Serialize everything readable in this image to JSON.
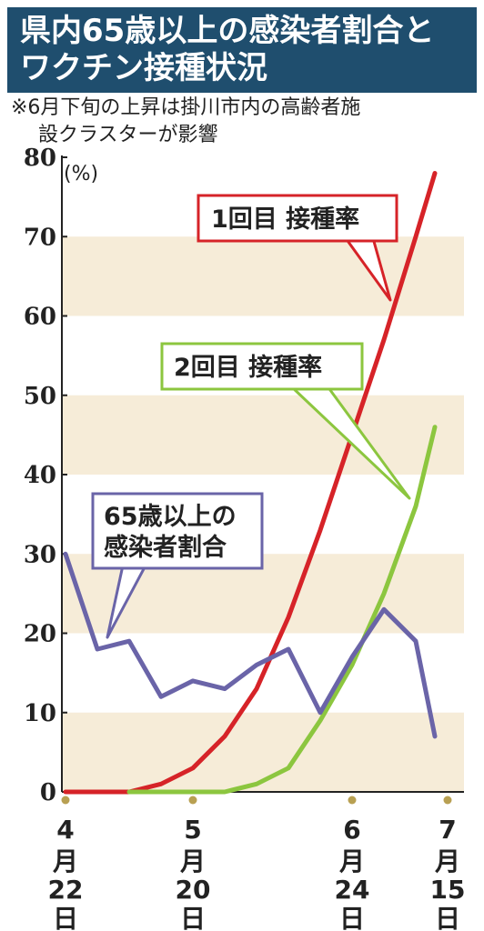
{
  "title": {
    "line1": "県内65歳以上の感染者割合と",
    "line2": "ワクチン接種状況"
  },
  "note": {
    "line1": "※6月下旬の上昇は掛川市内の高齢者施",
    "line2": "設クラスターが影響"
  },
  "colors": {
    "title_bg": "#1f4e6e",
    "band": "#f6ecd8",
    "dose1": "#d62328",
    "dose2": "#8cc63f",
    "infection": "#6a64a8",
    "date_dot": "#b8a052"
  },
  "chart_data": {
    "type": "line",
    "unit": "(%)",
    "ylim": [
      0,
      80
    ],
    "yticks": [
      "0",
      "10",
      "20",
      "30",
      "40",
      "50",
      "60",
      "70",
      "80"
    ],
    "x_index_range": [
      0,
      12
    ],
    "xticks": [
      {
        "index": 0,
        "month": "4",
        "tsuki": "月",
        "day": "22",
        "nichi": "日"
      },
      {
        "index": 4,
        "month": "5",
        "tsuki": "月",
        "day": "20",
        "nichi": "日"
      },
      {
        "index": 9,
        "month": "6",
        "tsuki": "月",
        "day": "24",
        "nichi": "日"
      },
      {
        "index": 12,
        "month": "7",
        "tsuki": "月",
        "day": "15",
        "nichi": "日"
      }
    ],
    "series": [
      {
        "name": "1回目 接種率",
        "x": [
          0,
          1,
          2,
          3,
          4,
          5,
          6,
          7,
          8,
          9,
          10,
          11,
          11.6
        ],
        "values": [
          0,
          0,
          0,
          1,
          3,
          7,
          13,
          22,
          33,
          45,
          57,
          70,
          78
        ]
      },
      {
        "name": "2回目 接種率",
        "x": [
          2,
          3,
          4,
          5,
          6,
          7,
          8,
          9,
          10,
          11,
          11.6
        ],
        "values": [
          0,
          0,
          0,
          0,
          1,
          3,
          9,
          16,
          25,
          36,
          46
        ]
      },
      {
        "name": "65歳以上の感染者割合",
        "name_line1": "65歳以上の",
        "name_line2": "感染者割合",
        "x": [
          0,
          1,
          2,
          3,
          4,
          5,
          6,
          7,
          8,
          9,
          10,
          11,
          11.6
        ],
        "values": [
          30,
          18,
          19,
          12,
          14,
          13,
          16,
          18,
          10,
          17,
          23,
          19,
          7
        ]
      }
    ]
  }
}
